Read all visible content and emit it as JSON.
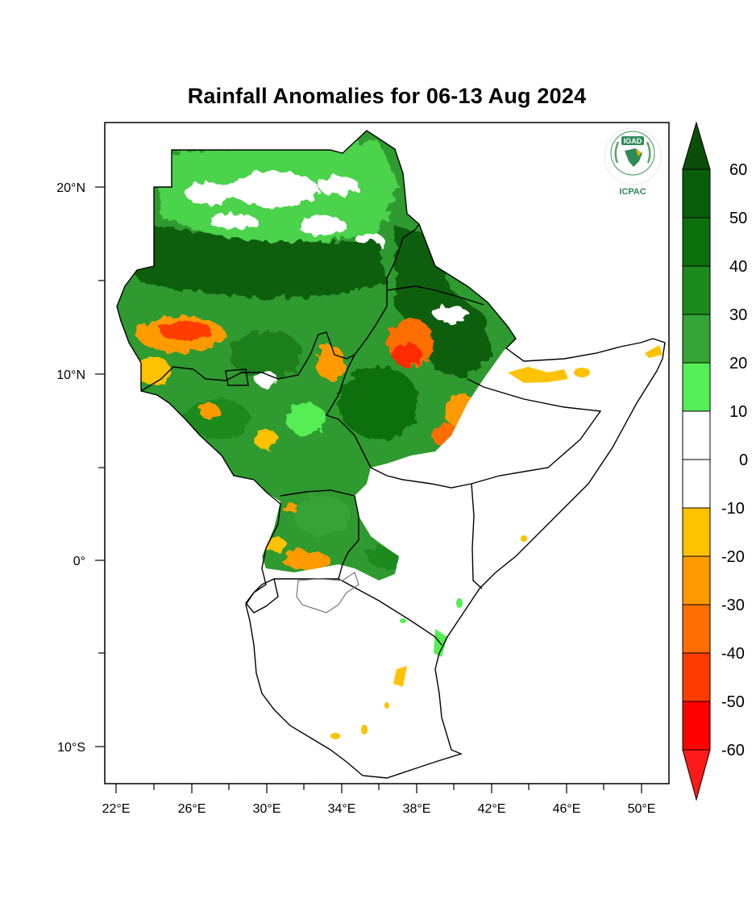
{
  "title": "Rainfall Anomalies for 06-13 Aug 2024",
  "lat_ticks": [
    "20°N",
    "10°N",
    "0°",
    "10°S"
  ],
  "lon_ticks": [
    "22°E",
    "26°E",
    "30°E",
    "34°E",
    "38°E",
    "42°E",
    "46°E",
    "50°E"
  ],
  "colorbar": {
    "labels": [
      "60",
      "50",
      "40",
      "30",
      "20",
      "10",
      "0",
      "-10",
      "-20",
      "-30",
      "-40",
      "-50",
      "-60"
    ],
    "colors_top_to_bottom": [
      "#0a5e0a",
      "#0c6f0c",
      "#1d8a1d",
      "#36a336",
      "#4cbf2c",
      "#55ee55",
      "#ffffff",
      "#ffffff",
      "#ffc200",
      "#ff9a00",
      "#ff6e00",
      "#ff3c00",
      "#ff0000"
    ],
    "top_arrow_color": "#0a4e0a",
    "bottom_arrow_color": "#ff1a1a"
  },
  "logo": {
    "top_text": "IGAD",
    "bottom_text": "ICPAC",
    "color": "#2e8b57"
  }
}
